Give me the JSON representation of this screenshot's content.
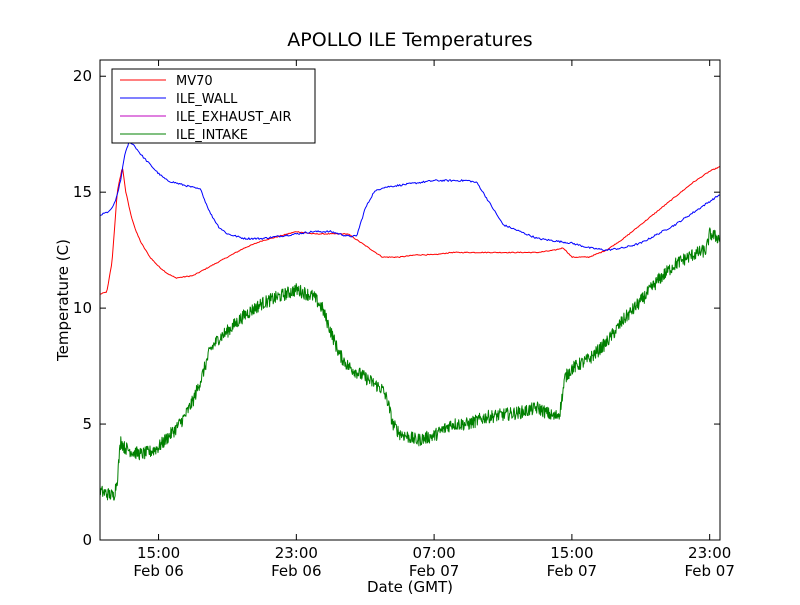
{
  "chart_data": {
    "type": "line",
    "title": "APOLLO ILE Temperatures",
    "xlabel": "Date (GMT)",
    "ylabel": "Temperature (C)",
    "xlim": [
      11.6,
      47.6
    ],
    "ylim": [
      0,
      20.7
    ],
    "grid": false,
    "legend_position": "top-left",
    "x_ticks": [
      {
        "value": 15,
        "time": "15:00",
        "date": "Feb 06"
      },
      {
        "value": 23,
        "time": "23:00",
        "date": "Feb 06"
      },
      {
        "value": 31,
        "time": "07:00",
        "date": "Feb 07"
      },
      {
        "value": 39,
        "time": "15:00",
        "date": "Feb 07"
      },
      {
        "value": 47,
        "time": "23:00",
        "date": "Feb 07"
      }
    ],
    "y_ticks": [
      0,
      5,
      10,
      15,
      20
    ],
    "series": [
      {
        "name": "MV70",
        "color": "#ff0000",
        "x": [
          11.6,
          12.0,
          12.3,
          12.6,
          12.9,
          13.1,
          13.4,
          13.7,
          14.0,
          14.5,
          15.0,
          15.5,
          16.0,
          17.0,
          18.0,
          19.0,
          20.0,
          21.0,
          22.0,
          23.0,
          24.0,
          25.0,
          26.0,
          27.0,
          28.0,
          29.0,
          30.0,
          31.0,
          32.0,
          33.0,
          34.0,
          35.0,
          36.0,
          37.0,
          38.0,
          38.5,
          39.0,
          40.0,
          41.0,
          42.0,
          43.0,
          44.0,
          45.0,
          46.0,
          47.0,
          47.6
        ],
        "values": [
          10.6,
          10.7,
          12.0,
          15.0,
          16.1,
          15.0,
          14.0,
          13.3,
          12.8,
          12.2,
          11.8,
          11.5,
          11.3,
          11.4,
          11.8,
          12.2,
          12.6,
          12.9,
          13.1,
          13.3,
          13.2,
          13.2,
          13.2,
          12.7,
          12.2,
          12.2,
          12.3,
          12.3,
          12.4,
          12.4,
          12.4,
          12.4,
          12.4,
          12.4,
          12.5,
          12.6,
          12.2,
          12.2,
          12.5,
          13.0,
          13.6,
          14.2,
          14.8,
          15.4,
          15.9,
          16.1
        ]
      },
      {
        "name": "ILE_WALL",
        "color": "#0000ff",
        "x": [
          11.6,
          12.2,
          12.5,
          12.8,
          13.0,
          13.3,
          13.6,
          14.0,
          14.5,
          15.0,
          15.5,
          16.0,
          17.0,
          17.5,
          17.6,
          18.0,
          18.5,
          19.0,
          20.0,
          21.0,
          22.0,
          23.0,
          24.0,
          25.0,
          26.0,
          26.5,
          27.0,
          27.5,
          28.0,
          29.0,
          30.0,
          31.0,
          32.0,
          33.0,
          33.5,
          34.0,
          35.0,
          36.0,
          37.0,
          38.0,
          39.0,
          40.0,
          41.0,
          42.0,
          43.0,
          44.0,
          45.0,
          46.0,
          47.0,
          47.6
        ],
        "values": [
          14.0,
          14.2,
          14.6,
          15.5,
          16.5,
          17.2,
          17.0,
          16.6,
          16.2,
          15.8,
          15.5,
          15.4,
          15.2,
          15.1,
          14.8,
          14.1,
          13.5,
          13.2,
          13.0,
          13.0,
          13.1,
          13.2,
          13.3,
          13.3,
          13.1,
          13.1,
          14.3,
          15.0,
          15.2,
          15.3,
          15.4,
          15.5,
          15.5,
          15.5,
          15.4,
          14.8,
          13.6,
          13.3,
          13.0,
          12.9,
          12.8,
          12.6,
          12.5,
          12.6,
          12.8,
          13.2,
          13.6,
          14.1,
          14.6,
          14.9
        ]
      },
      {
        "name": "ILE_EXHAUST_AIR",
        "color": "#bf00bf",
        "x": [],
        "values": []
      },
      {
        "name": "ILE_INTAKE",
        "color": "#008000",
        "x": [
          11.6,
          12.0,
          12.4,
          12.6,
          12.8,
          13.0,
          13.5,
          14.0,
          14.5,
          15.0,
          15.5,
          16.0,
          16.5,
          17.0,
          17.5,
          18.0,
          18.5,
          19.0,
          20.0,
          21.0,
          22.0,
          23.0,
          24.0,
          24.5,
          25.0,
          25.5,
          26.0,
          27.0,
          28.0,
          28.3,
          28.6,
          29.0,
          30.0,
          31.0,
          32.0,
          33.0,
          34.0,
          35.0,
          36.0,
          37.0,
          38.0,
          38.3,
          38.6,
          39.0,
          40.0,
          41.0,
          42.0,
          43.0,
          44.0,
          45.0,
          46.0,
          46.8,
          47.0,
          47.6
        ],
        "values": [
          2.1,
          2.0,
          1.9,
          2.6,
          4.3,
          4.0,
          3.8,
          3.7,
          3.8,
          4.0,
          4.4,
          4.8,
          5.3,
          6.0,
          7.0,
          8.2,
          8.7,
          9.0,
          9.7,
          10.2,
          10.5,
          10.8,
          10.5,
          10.0,
          9.0,
          8.0,
          7.5,
          7.0,
          6.5,
          6.0,
          5.0,
          4.6,
          4.3,
          4.5,
          5.0,
          5.0,
          5.3,
          5.4,
          5.5,
          5.7,
          5.3,
          5.5,
          7.0,
          7.4,
          7.8,
          8.5,
          9.5,
          10.3,
          11.2,
          11.9,
          12.3,
          12.5,
          13.2,
          13.0
        ]
      }
    ]
  }
}
